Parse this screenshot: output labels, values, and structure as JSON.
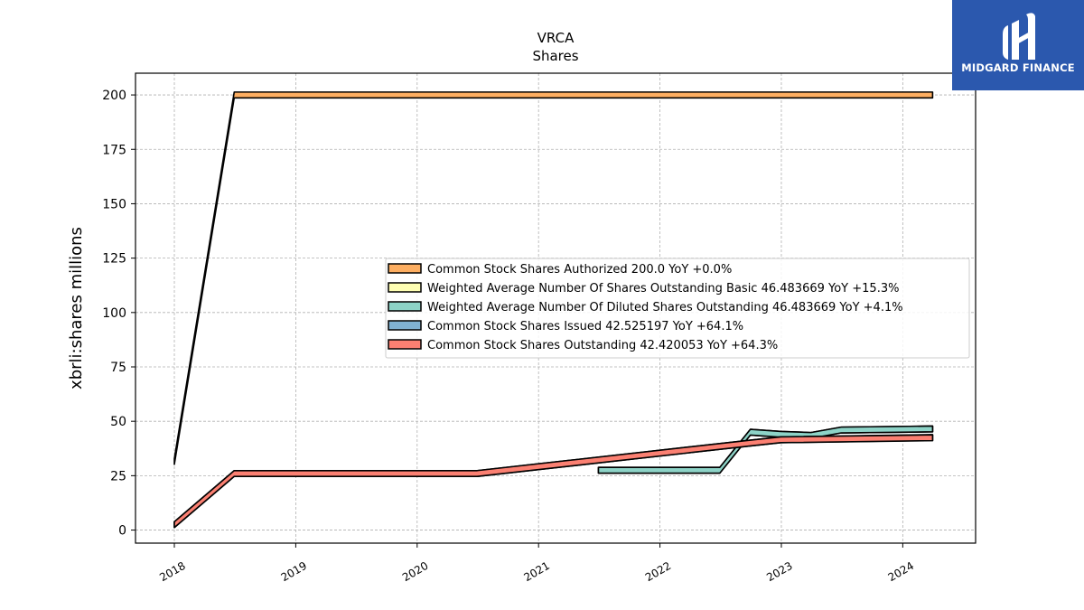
{
  "chart_data": {
    "type": "area",
    "title": "VRCA",
    "subtitle": "Shares",
    "ylabel": "xbrli:shares millions",
    "xlabel": "",
    "xlim": [
      2017.68,
      2024.6
    ],
    "ylim": [
      -6,
      210
    ],
    "y_ticks": [
      0,
      25,
      50,
      75,
      100,
      125,
      150,
      175,
      200
    ],
    "x_ticks": [
      "2018",
      "2019",
      "2020",
      "2021",
      "2022",
      "2023",
      "2024"
    ],
    "grid": true,
    "legend_position": "center-right",
    "series": [
      {
        "name": "Common Stock Shares Authorized",
        "legend": "Common Stock Shares Authorized  200.0 YoY +0.0%",
        "color": "#fdae61",
        "x": [
          "2018-01-01",
          "2018-06-30",
          "2024-03-31"
        ],
        "values": [
          31.5,
          200.0,
          200.0
        ]
      },
      {
        "name": "Weighted Average Number Of Shares Outstanding Basic",
        "legend": "Weighted Average Number Of Shares Outstanding Basic  46.483669 YoY +15.3%",
        "color": "#ffffb3",
        "x": [
          "2021-06-30",
          "2022-06-30",
          "2022-09-30",
          "2022-12-31",
          "2023-03-31",
          "2023-06-30",
          "2024-03-31"
        ],
        "values": [
          27.5,
          27.5,
          45.0,
          44.0,
          43.5,
          46.0,
          46.483669
        ]
      },
      {
        "name": "Weighted Average Number Of Diluted Shares Outstanding",
        "legend": "Weighted Average Number Of Diluted Shares Outstanding  46.483669 YoY +4.1%",
        "color": "#8dd3c7",
        "x": [
          "2021-06-30",
          "2022-06-30",
          "2022-09-30",
          "2022-12-31",
          "2023-03-31",
          "2023-06-30",
          "2024-03-31"
        ],
        "values": [
          27.5,
          27.5,
          45.0,
          44.0,
          43.5,
          46.0,
          46.483669
        ]
      },
      {
        "name": "Common Stock Shares Issued",
        "legend": "Common Stock Shares Issued  42.525197 YoY +64.1%",
        "color": "#80b1d3",
        "x": [
          "2018-01-01",
          "2018-06-30",
          "2020-06-30",
          "2022-09-30",
          "2022-12-31",
          "2024-03-31"
        ],
        "values": [
          2.5,
          26.0,
          26.0,
          40.0,
          41.5,
          42.525197
        ]
      },
      {
        "name": "Common Stock Shares Outstanding",
        "legend": "Common Stock Shares Outstanding  42.420053 YoY +64.3%",
        "color": "#fb8072",
        "x": [
          "2018-01-01",
          "2018-06-30",
          "2020-06-30",
          "2022-09-30",
          "2022-12-31",
          "2024-03-31"
        ],
        "values": [
          2.5,
          26.0,
          26.0,
          40.0,
          41.5,
          42.420053
        ]
      }
    ]
  },
  "branding": {
    "logo_text": "MIDGARD FINANCE",
    "logo_icon": "midgard-logo-icon"
  }
}
